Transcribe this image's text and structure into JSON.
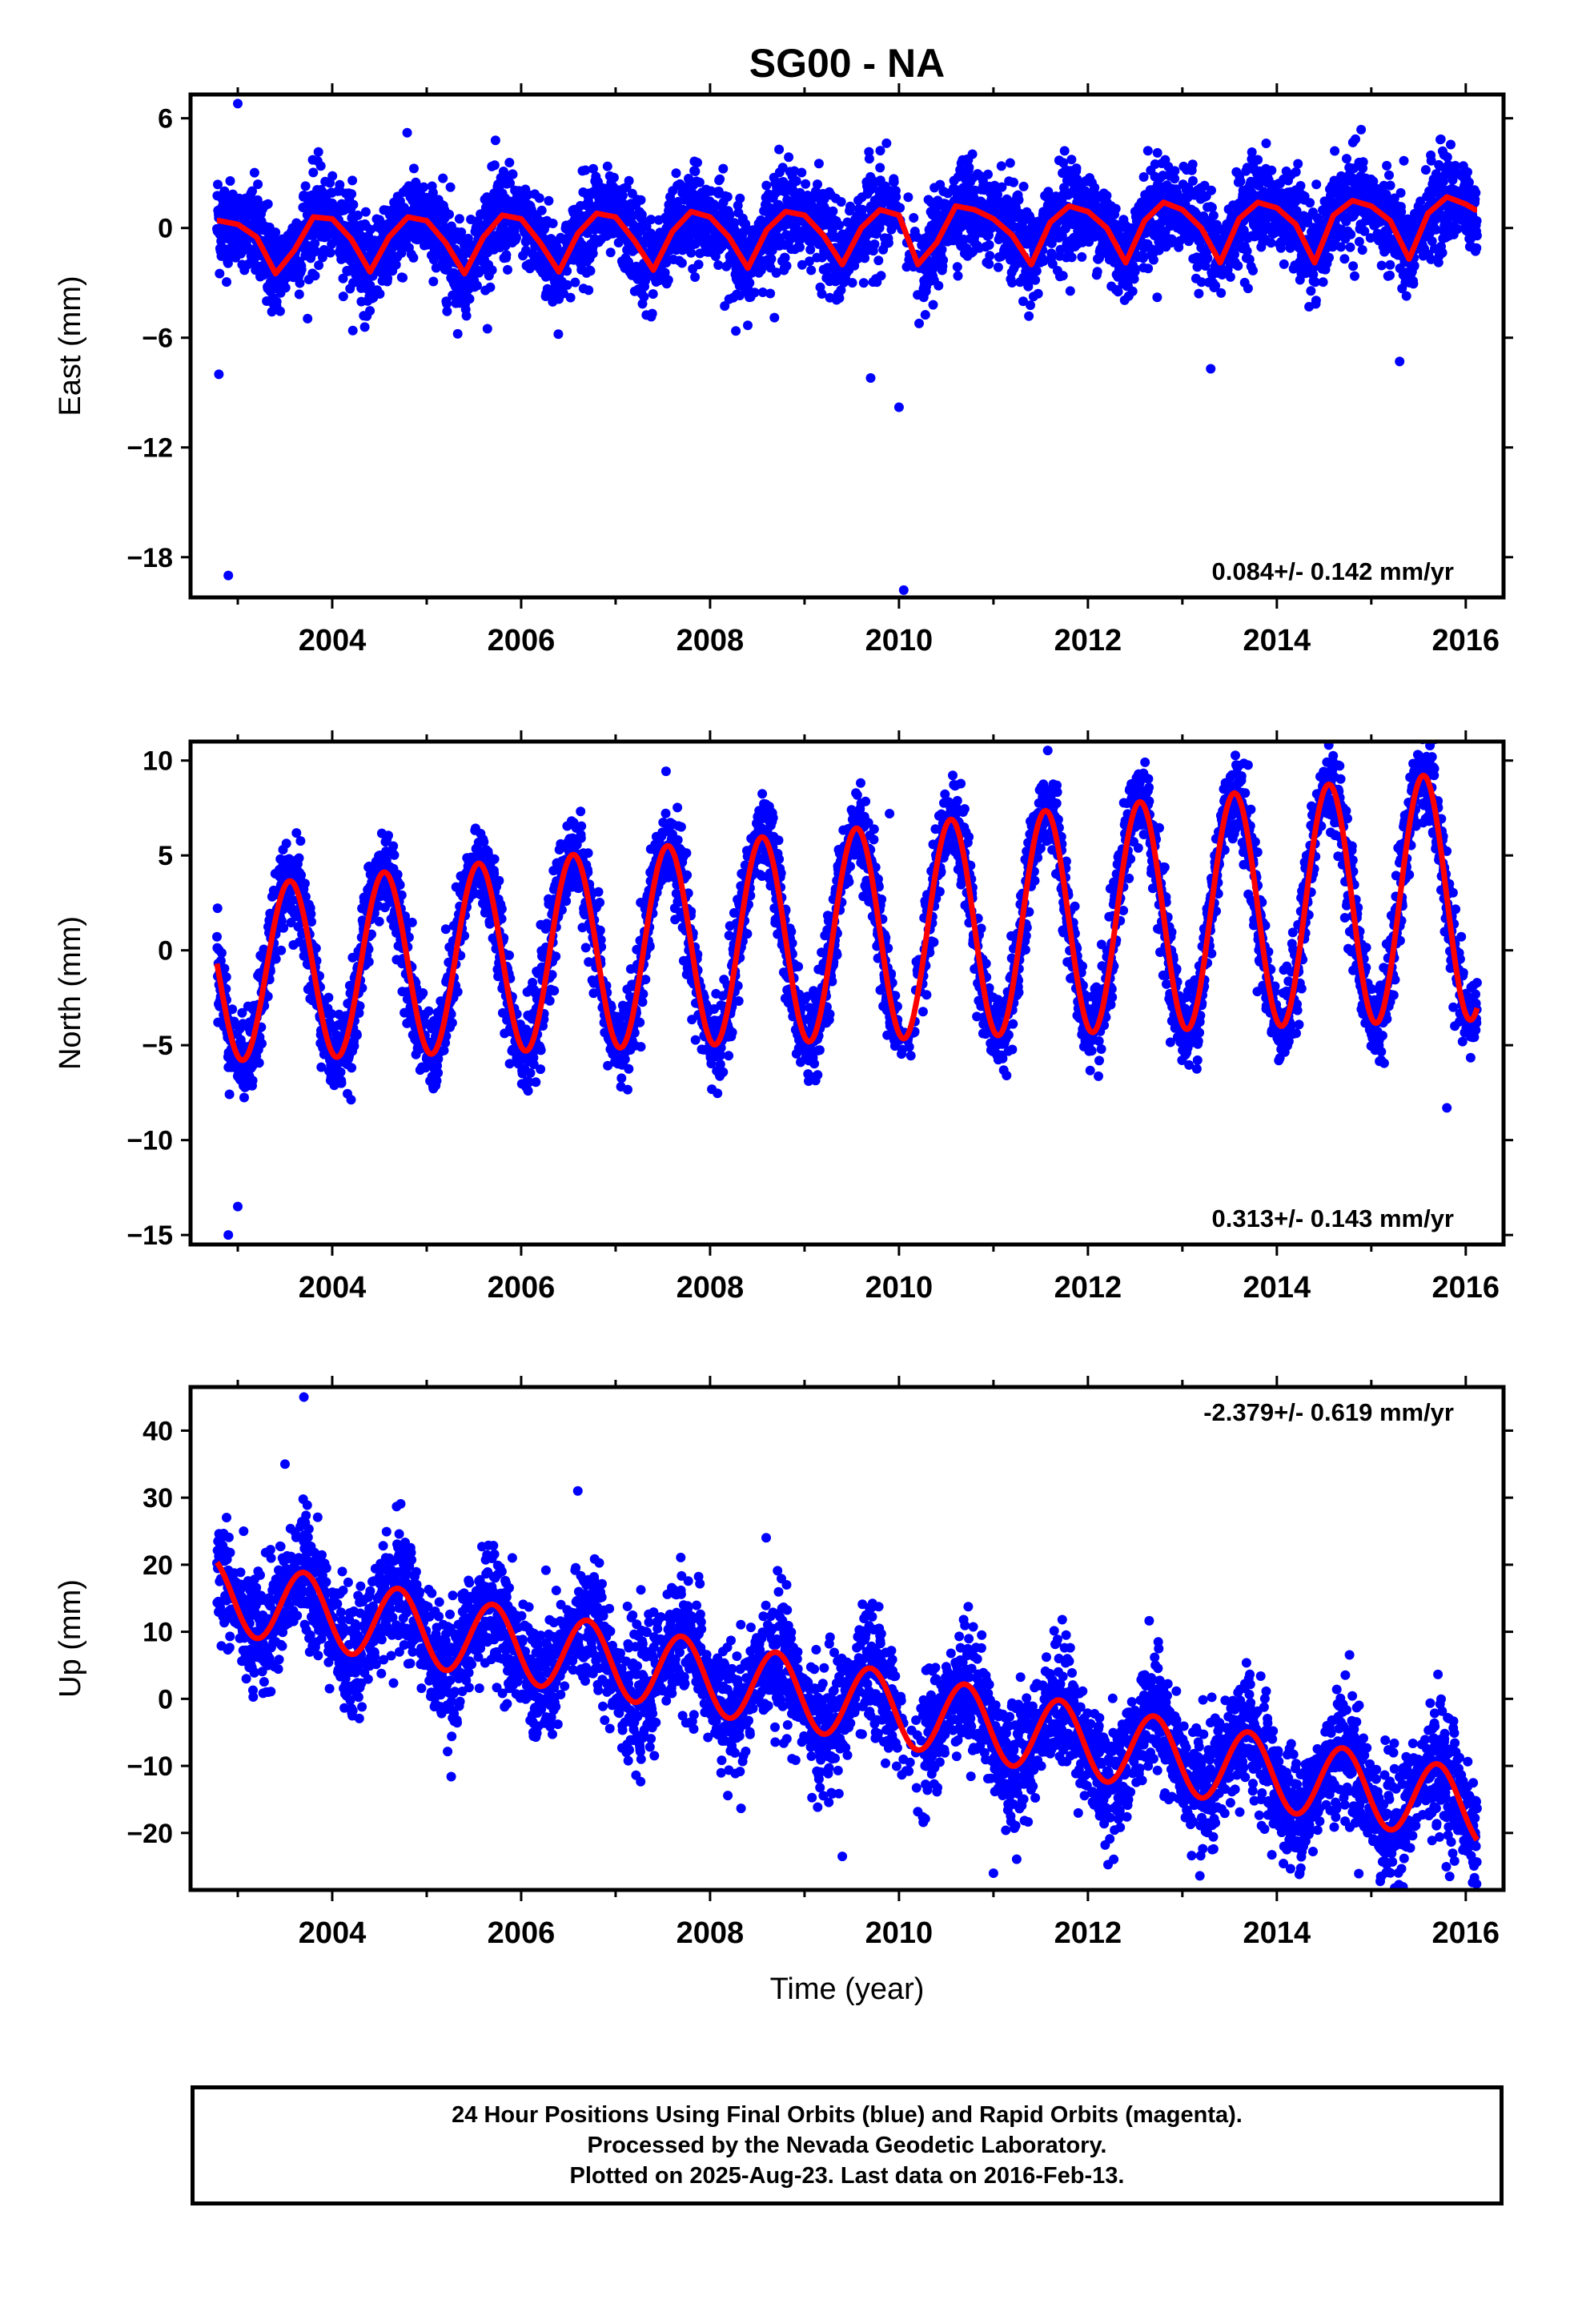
{
  "title": "SG00 - NA",
  "chart_data": [
    {
      "type": "scatter",
      "panel": "east",
      "ylabel": "East (mm)",
      "xlabel": "",
      "xlim": [
        2002.5,
        2016.4
      ],
      "ylim": [
        -20.2,
        7.3
      ],
      "yticks": [
        6,
        0,
        -6,
        -12,
        -18
      ],
      "ytick_labels": [
        "6",
        "0",
        "−6",
        "−12",
        "−18"
      ],
      "xticks": [
        2004,
        2006,
        2008,
        2010,
        2012,
        2014,
        2016
      ],
      "xtick_labels": [
        "2004",
        "2006",
        "2008",
        "2010",
        "2012",
        "2014",
        "2016"
      ],
      "rate_label": "0.084+/- 0.142 mm/yr",
      "rate_position": "bottom-right",
      "series": [
        {
          "name": "Final Orbits",
          "color": "#0000ff",
          "render": "dots"
        },
        {
          "name": "Model fit",
          "color": "#ff0000",
          "render": "line",
          "x": [
            2002.8,
            2003.0,
            2003.2,
            2003.4,
            2003.6,
            2003.8,
            2004.0,
            2004.2,
            2004.4,
            2004.6,
            2004.8,
            2005.0,
            2005.2,
            2005.4,
            2005.6,
            2005.8,
            2006.0,
            2006.2,
            2006.4,
            2006.6,
            2006.8,
            2007.0,
            2007.2,
            2007.4,
            2007.6,
            2007.8,
            2008.0,
            2008.2,
            2008.4,
            2008.6,
            2008.8,
            2009.0,
            2009.2,
            2009.4,
            2009.6,
            2009.8,
            2010.0,
            2010.2,
            2010.4,
            2010.6,
            2010.8,
            2011.0,
            2011.2,
            2011.4,
            2011.6,
            2011.8,
            2012.0,
            2012.2,
            2012.4,
            2012.6,
            2012.8,
            2013.0,
            2013.2,
            2013.4,
            2013.6,
            2013.8,
            2014.0,
            2014.2,
            2014.4,
            2014.6,
            2014.8,
            2015.0,
            2015.2,
            2015.4,
            2015.6,
            2015.8,
            2016.0,
            2016.1
          ],
          "y": [
            0.4,
            0.2,
            -0.5,
            -2.5,
            -1.2,
            0.6,
            0.5,
            -0.6,
            -2.4,
            -0.5,
            0.6,
            0.4,
            -0.8,
            -2.5,
            -0.5,
            0.7,
            0.5,
            -0.8,
            -2.4,
            -0.3,
            0.8,
            0.6,
            -0.7,
            -2.3,
            -0.2,
            0.9,
            0.6,
            -0.5,
            -2.2,
            -0.1,
            0.9,
            0.7,
            -0.4,
            -2.0,
            0.0,
            1.0,
            0.7,
            -2.0,
            -0.8,
            1.2,
            1.0,
            0.5,
            -0.4,
            -2.0,
            0.3,
            1.2,
            0.9,
            0.0,
            -1.9,
            0.4,
            1.4,
            1.0,
            0.0,
            -1.9,
            0.5,
            1.4,
            1.1,
            0.2,
            -1.9,
            0.7,
            1.5,
            1.2,
            0.4,
            -1.7,
            0.8,
            1.7,
            1.3,
            1.0
          ]
        }
      ]
    },
    {
      "type": "scatter",
      "panel": "north",
      "ylabel": "North (mm)",
      "xlabel": "",
      "xlim": [
        2002.5,
        2016.4
      ],
      "ylim": [
        -15.5,
        11.0
      ],
      "yticks": [
        10,
        5,
        0,
        -5,
        -10,
        -15
      ],
      "ytick_labels": [
        "10",
        "5",
        "0",
        "−5",
        "−10",
        "−15"
      ],
      "xticks": [
        2004,
        2006,
        2008,
        2010,
        2012,
        2014,
        2016
      ],
      "xtick_labels": [
        "2004",
        "2006",
        "2008",
        "2010",
        "2012",
        "2014",
        "2016"
      ],
      "rate_label": "0.313+/- 0.143 mm/yr",
      "rate_position": "bottom-right",
      "series": [
        {
          "name": "Final Orbits",
          "color": "#0000ff",
          "render": "dots"
        },
        {
          "name": "Model fit",
          "color": "#ff0000",
          "render": "line",
          "model": "sinusoid"
        }
      ]
    },
    {
      "type": "scatter",
      "panel": "up",
      "ylabel": "Up (mm)",
      "xlabel": "Time (year)",
      "xlim": [
        2002.5,
        2016.4
      ],
      "ylim": [
        -28.5,
        46.5
      ],
      "yticks": [
        40,
        30,
        20,
        10,
        0,
        -10,
        -20
      ],
      "ytick_labels": [
        "40",
        "30",
        "20",
        "10",
        "0",
        "−10",
        "−20"
      ],
      "xticks": [
        2004,
        2006,
        2008,
        2010,
        2012,
        2014,
        2016
      ],
      "xtick_labels": [
        "2004",
        "2006",
        "2008",
        "2010",
        "2012",
        "2014",
        "2016"
      ],
      "rate_label": "-2.379+/- 0.619 mm/yr",
      "rate_position": "top-right",
      "series": [
        {
          "name": "Final Orbits",
          "color": "#0000ff",
          "render": "dots"
        },
        {
          "name": "Model fit",
          "color": "#ff0000",
          "render": "line",
          "model": "sinusoid"
        }
      ]
    }
  ],
  "caption": {
    "line1": "24 Hour Positions Using Final Orbits (blue) and Rapid Orbits (magenta).",
    "line2": "Processed by the Nevada Geodetic Laboratory.",
    "line3": "Plotted on 2025-Aug-23. Last data on 2016-Feb-13."
  },
  "colors": {
    "data": "#0000ff",
    "fit": "#ff0000",
    "frame": "#000000"
  }
}
